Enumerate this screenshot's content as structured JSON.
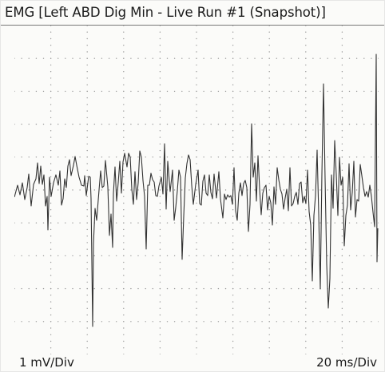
{
  "window": {
    "title": "EMG [Left ABD Dig Min - Live Run #1 (Snapshot)]"
  },
  "scale": {
    "amplitude": "1 mV/Div",
    "time": "20 ms/Div"
  },
  "trace": {
    "color": "#333333",
    "grid_dot_color": "#9a9a9a",
    "description_units": "mV",
    "amplitude_per_div": 1,
    "time_per_div_ms": 20
  }
}
